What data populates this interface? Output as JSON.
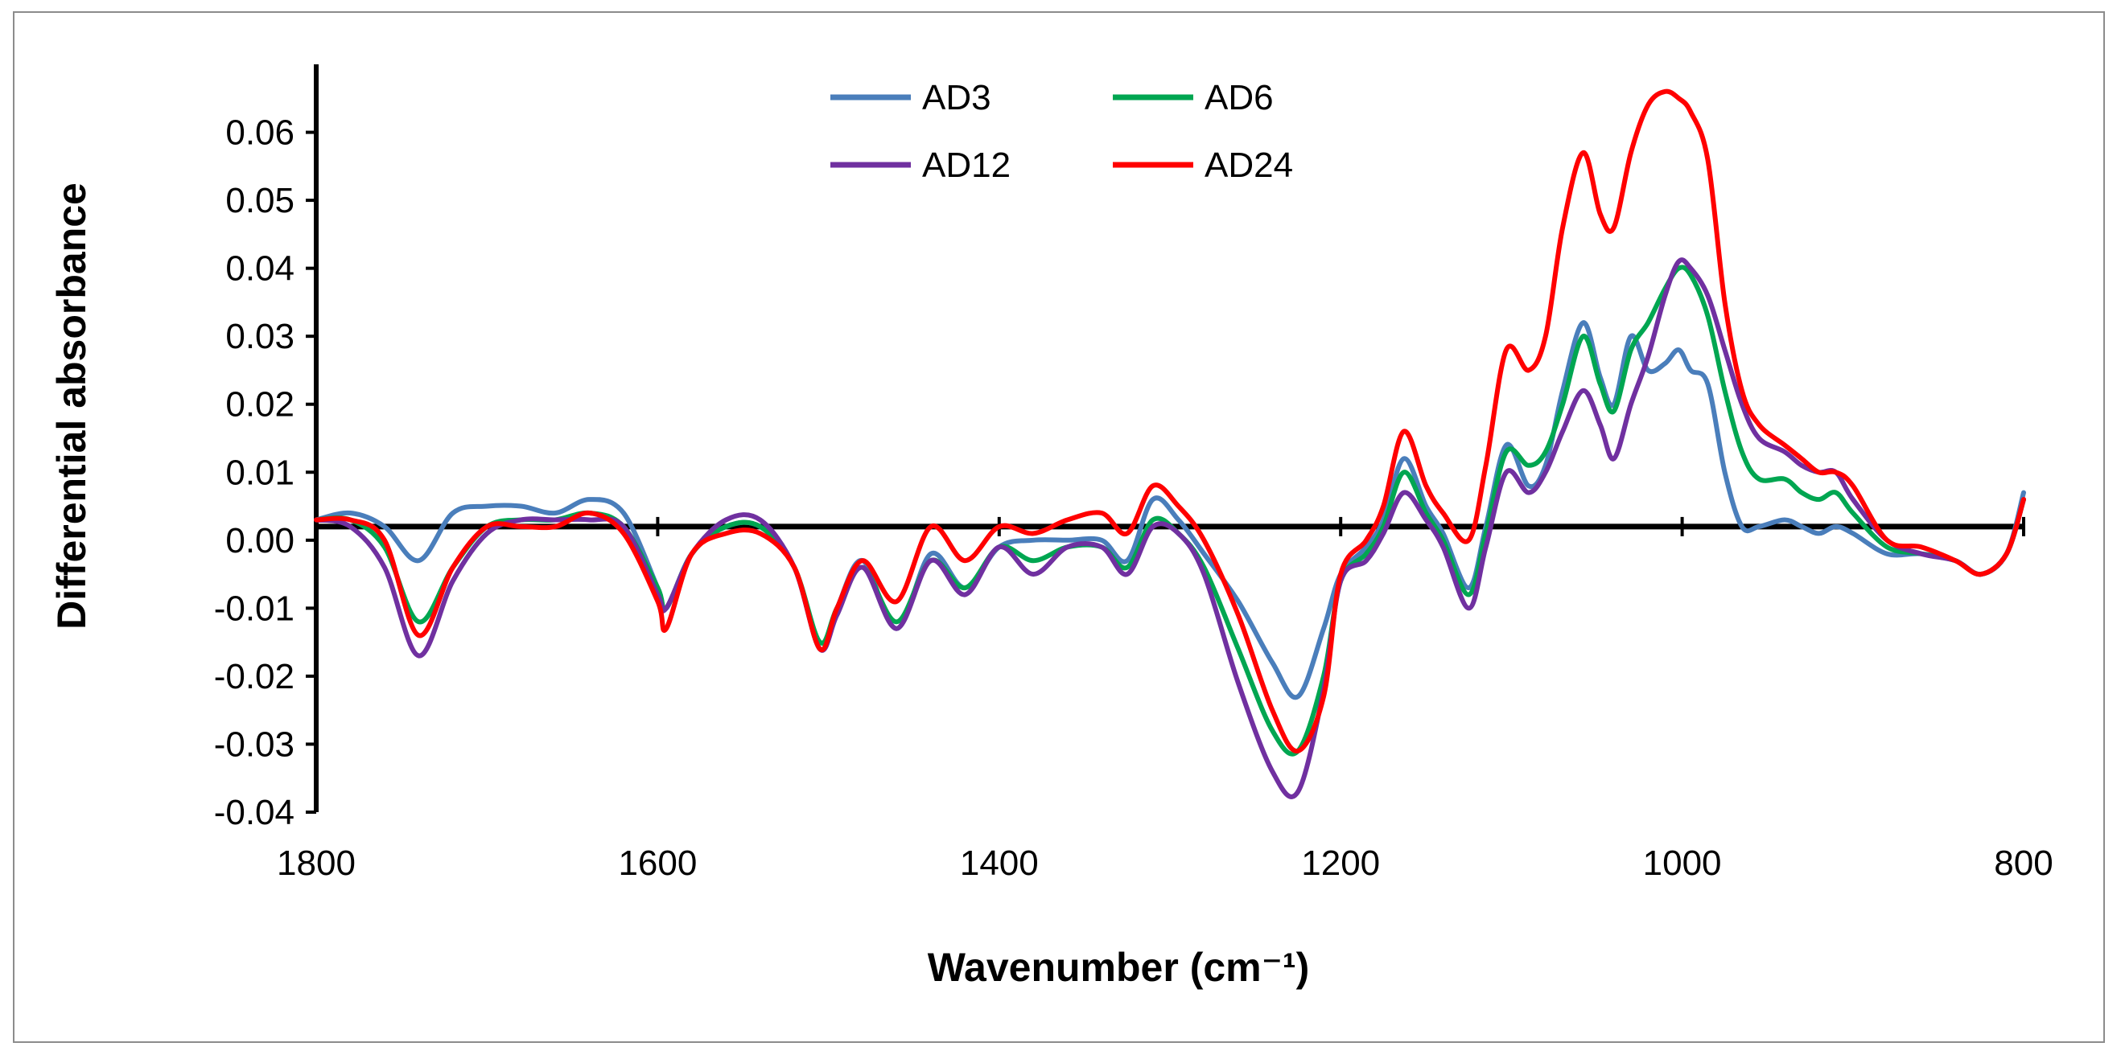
{
  "chart_data": {
    "type": "line",
    "title": "",
    "xlabel": "Wavenumber (cm⁻¹)",
    "ylabel": "Differential absorbance",
    "xlim": [
      1800,
      800
    ],
    "ylim": [
      -0.04,
      0.07
    ],
    "x_reversed": true,
    "xticks": [
      1800,
      1600,
      1400,
      1200,
      1000,
      800
    ],
    "xtick_labels": [
      "1800",
      "1600",
      "1400",
      "1200",
      "1000",
      "800"
    ],
    "yticks": [
      -0.04,
      -0.03,
      -0.02,
      -0.01,
      0.0,
      0.01,
      0.02,
      0.03,
      0.04,
      0.05,
      0.06
    ],
    "ytick_labels": [
      "-0.04",
      "-0.03",
      "-0.02",
      "-0.01",
      "0.00",
      "0.01",
      "0.02",
      "0.03",
      "0.04",
      "0.05",
      "0.06"
    ],
    "baseline": 0.002,
    "grid": false,
    "legend_position": "top-center",
    "series": [
      {
        "name": "AD3",
        "color": "#4a7ebb",
        "x": [
          1800,
          1780,
          1760,
          1740,
          1720,
          1700,
          1680,
          1660,
          1640,
          1620,
          1600,
          1595,
          1580,
          1560,
          1540,
          1520,
          1505,
          1495,
          1480,
          1460,
          1440,
          1420,
          1400,
          1380,
          1360,
          1340,
          1325,
          1310,
          1295,
          1280,
          1260,
          1240,
          1225,
          1210,
          1200,
          1185,
          1175,
          1163,
          1150,
          1140,
          1125,
          1115,
          1103,
          1090,
          1080,
          1070,
          1058,
          1048,
          1040,
          1030,
          1020,
          1010,
          1002,
          995,
          985,
          975,
          965,
          955,
          940,
          930,
          920,
          910,
          900,
          880,
          860,
          840,
          825,
          810,
          800
        ],
        "y": [
          0.003,
          0.004,
          0.002,
          -0.003,
          0.004,
          0.005,
          0.005,
          0.004,
          0.006,
          0.004,
          -0.007,
          -0.01,
          -0.002,
          0.002,
          0.002,
          -0.004,
          -0.016,
          -0.01,
          -0.003,
          -0.013,
          -0.002,
          -0.007,
          -0.001,
          0.0,
          0.0,
          0.0,
          -0.003,
          0.006,
          0.003,
          -0.002,
          -0.009,
          -0.018,
          -0.023,
          -0.013,
          -0.005,
          -0.001,
          0.003,
          0.012,
          0.005,
          0.001,
          -0.007,
          0.002,
          0.014,
          0.008,
          0.011,
          0.022,
          0.032,
          0.024,
          0.02,
          0.03,
          0.025,
          0.026,
          0.028,
          0.025,
          0.023,
          0.01,
          0.002,
          0.002,
          0.003,
          0.002,
          0.001,
          0.002,
          0.001,
          -0.002,
          -0.002,
          -0.003,
          -0.005,
          -0.002,
          0.007
        ]
      },
      {
        "name": "AD6",
        "color": "#00a651",
        "x": [
          1800,
          1780,
          1760,
          1740,
          1720,
          1700,
          1680,
          1660,
          1640,
          1620,
          1600,
          1595,
          1580,
          1560,
          1540,
          1520,
          1505,
          1495,
          1480,
          1460,
          1440,
          1420,
          1400,
          1380,
          1360,
          1340,
          1325,
          1310,
          1295,
          1280,
          1260,
          1240,
          1225,
          1210,
          1200,
          1185,
          1175,
          1163,
          1150,
          1140,
          1125,
          1115,
          1103,
          1090,
          1080,
          1070,
          1058,
          1048,
          1040,
          1030,
          1020,
          1010,
          1002,
          995,
          985,
          975,
          965,
          955,
          940,
          930,
          920,
          910,
          900,
          880,
          860,
          840,
          825,
          810,
          800
        ],
        "y": [
          0.003,
          0.003,
          -0.001,
          -0.012,
          -0.004,
          0.002,
          0.003,
          0.003,
          0.004,
          0.002,
          -0.007,
          -0.01,
          -0.002,
          0.002,
          0.002,
          -0.004,
          -0.015,
          -0.01,
          -0.004,
          -0.012,
          -0.003,
          -0.007,
          -0.001,
          -0.003,
          -0.001,
          -0.001,
          -0.004,
          0.003,
          0.001,
          -0.004,
          -0.016,
          -0.028,
          -0.031,
          -0.02,
          -0.006,
          -0.002,
          0.002,
          0.01,
          0.004,
          0.0,
          -0.008,
          0.001,
          0.013,
          0.011,
          0.013,
          0.02,
          0.03,
          0.023,
          0.019,
          0.028,
          0.032,
          0.037,
          0.04,
          0.039,
          0.033,
          0.022,
          0.013,
          0.009,
          0.009,
          0.007,
          0.006,
          0.007,
          0.004,
          -0.001,
          -0.002,
          -0.003,
          -0.005,
          -0.002,
          0.006
        ]
      },
      {
        "name": "AD12",
        "color": "#7030a0",
        "x": [
          1800,
          1780,
          1760,
          1740,
          1720,
          1700,
          1680,
          1660,
          1640,
          1620,
          1600,
          1595,
          1580,
          1560,
          1540,
          1520,
          1505,
          1495,
          1480,
          1460,
          1440,
          1420,
          1400,
          1380,
          1360,
          1340,
          1325,
          1310,
          1295,
          1280,
          1260,
          1240,
          1225,
          1210,
          1200,
          1185,
          1175,
          1163,
          1150,
          1140,
          1125,
          1115,
          1103,
          1090,
          1080,
          1070,
          1058,
          1048,
          1040,
          1030,
          1020,
          1010,
          1002,
          995,
          985,
          975,
          965,
          955,
          940,
          930,
          920,
          910,
          900,
          880,
          860,
          840,
          825,
          810,
          800
        ],
        "y": [
          0.003,
          0.002,
          -0.004,
          -0.017,
          -0.006,
          0.001,
          0.003,
          0.003,
          0.003,
          0.002,
          -0.008,
          -0.01,
          -0.002,
          0.003,
          0.003,
          -0.004,
          -0.016,
          -0.011,
          -0.004,
          -0.013,
          -0.003,
          -0.008,
          -0.001,
          -0.005,
          -0.001,
          -0.001,
          -0.005,
          0.002,
          0.001,
          -0.005,
          -0.021,
          -0.034,
          -0.037,
          -0.022,
          -0.006,
          -0.003,
          0.001,
          0.007,
          0.003,
          -0.001,
          -0.01,
          -0.001,
          0.01,
          0.007,
          0.01,
          0.016,
          0.022,
          0.017,
          0.012,
          0.02,
          0.027,
          0.036,
          0.041,
          0.04,
          0.036,
          0.028,
          0.02,
          0.015,
          0.013,
          0.011,
          0.01,
          0.01,
          0.006,
          0.0,
          -0.002,
          -0.003,
          -0.005,
          -0.002,
          0.006
        ]
      },
      {
        "name": "AD24",
        "color": "#ff0000",
        "x": [
          1800,
          1780,
          1760,
          1740,
          1720,
          1700,
          1680,
          1660,
          1640,
          1620,
          1600,
          1595,
          1580,
          1560,
          1540,
          1520,
          1505,
          1495,
          1480,
          1460,
          1440,
          1420,
          1400,
          1380,
          1360,
          1340,
          1325,
          1310,
          1295,
          1280,
          1260,
          1240,
          1225,
          1210,
          1200,
          1185,
          1175,
          1163,
          1150,
          1140,
          1125,
          1115,
          1103,
          1090,
          1080,
          1070,
          1058,
          1048,
          1040,
          1030,
          1020,
          1010,
          1002,
          995,
          985,
          975,
          965,
          955,
          940,
          930,
          920,
          910,
          900,
          880,
          860,
          840,
          825,
          810,
          800
        ],
        "y": [
          0.003,
          0.003,
          0.0,
          -0.014,
          -0.004,
          0.002,
          0.002,
          0.002,
          0.004,
          0.001,
          -0.009,
          -0.013,
          -0.002,
          0.001,
          0.001,
          -0.004,
          -0.016,
          -0.01,
          -0.003,
          -0.009,
          0.002,
          -0.003,
          0.002,
          0.001,
          0.003,
          0.004,
          0.001,
          0.008,
          0.005,
          0.0,
          -0.011,
          -0.025,
          -0.031,
          -0.023,
          -0.005,
          0.0,
          0.005,
          0.016,
          0.008,
          0.004,
          0.0,
          0.011,
          0.028,
          0.025,
          0.03,
          0.046,
          0.057,
          0.048,
          0.046,
          0.057,
          0.064,
          0.066,
          0.065,
          0.063,
          0.056,
          0.035,
          0.022,
          0.017,
          0.014,
          0.012,
          0.01,
          0.01,
          0.008,
          0.0,
          -0.001,
          -0.003,
          -0.005,
          -0.002,
          0.006
        ]
      }
    ]
  }
}
